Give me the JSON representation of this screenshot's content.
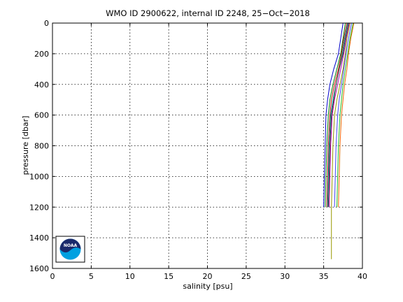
{
  "chart_data": {
    "type": "line",
    "title": "WMO ID 2900622, internal ID 2248, 25−Oct−2018",
    "xlabel": "salinity [psu]",
    "ylabel": "pressure [dbar]",
    "xlim": [
      0,
      40
    ],
    "ylim": [
      0,
      1600
    ],
    "y_reversed": true,
    "grid": true,
    "xticks": [
      0,
      5,
      10,
      15,
      20,
      25,
      30,
      35,
      40
    ],
    "yticks": [
      0,
      200,
      400,
      600,
      800,
      1000,
      1200,
      1400,
      1600
    ],
    "logo_text": "NOAA",
    "series": [
      {
        "color": "#0000cc",
        "points": [
          [
            37.5,
            0
          ],
          [
            37.2,
            100
          ],
          [
            36.9,
            200
          ],
          [
            36.3,
            300
          ],
          [
            35.8,
            400
          ],
          [
            35.5,
            500
          ],
          [
            35.3,
            600
          ],
          [
            35.2,
            800
          ],
          [
            35.1,
            1000
          ],
          [
            35.0,
            1200
          ]
        ]
      },
      {
        "color": "#008000",
        "points": [
          [
            37.8,
            0
          ],
          [
            37.5,
            100
          ],
          [
            37.2,
            200
          ],
          [
            36.7,
            300
          ],
          [
            36.2,
            400
          ],
          [
            35.8,
            500
          ],
          [
            35.6,
            600
          ],
          [
            35.4,
            800
          ],
          [
            35.3,
            1000
          ],
          [
            35.2,
            1200
          ]
        ]
      },
      {
        "color": "#cc0000",
        "points": [
          [
            38.0,
            0
          ],
          [
            37.6,
            100
          ],
          [
            37.3,
            200
          ],
          [
            36.9,
            300
          ],
          [
            36.4,
            400
          ],
          [
            36.0,
            500
          ],
          [
            35.8,
            600
          ],
          [
            35.6,
            800
          ],
          [
            35.5,
            1000
          ],
          [
            35.4,
            1200
          ]
        ]
      },
      {
        "color": "#00aaaa",
        "points": [
          [
            38.1,
            0
          ],
          [
            37.7,
            100
          ],
          [
            37.4,
            200
          ],
          [
            37.0,
            300
          ],
          [
            36.6,
            400
          ],
          [
            36.2,
            500
          ],
          [
            35.9,
            600
          ],
          [
            35.7,
            800
          ],
          [
            35.6,
            1000
          ],
          [
            35.5,
            1200
          ]
        ]
      },
      {
        "color": "#aa00aa",
        "points": [
          [
            38.3,
            0
          ],
          [
            37.9,
            100
          ],
          [
            37.6,
            200
          ],
          [
            37.2,
            300
          ],
          [
            36.8,
            400
          ],
          [
            36.4,
            500
          ],
          [
            36.1,
            600
          ],
          [
            35.9,
            800
          ],
          [
            35.8,
            1000
          ],
          [
            35.7,
            1200
          ]
        ]
      },
      {
        "color": "#999900",
        "points": [
          [
            38.4,
            0
          ],
          [
            38.0,
            100
          ],
          [
            37.8,
            200
          ],
          [
            37.5,
            300
          ],
          [
            37.1,
            400
          ],
          [
            36.7,
            500
          ],
          [
            36.4,
            600
          ],
          [
            36.2,
            800
          ],
          [
            36.1,
            1000
          ],
          [
            36.0,
            1200
          ],
          [
            36.0,
            1400
          ],
          [
            36.0,
            1540
          ]
        ]
      },
      {
        "color": "#333333",
        "points": [
          [
            38.2,
            0
          ],
          [
            37.8,
            100
          ],
          [
            37.5,
            200
          ],
          [
            37.0,
            300
          ],
          [
            36.6,
            400
          ],
          [
            36.3,
            500
          ],
          [
            36.0,
            600
          ],
          [
            35.8,
            800
          ],
          [
            35.7,
            1000
          ],
          [
            35.6,
            1200
          ]
        ]
      },
      {
        "color": "#4444ff",
        "points": [
          [
            38.6,
            0
          ],
          [
            38.2,
            100
          ],
          [
            37.9,
            200
          ],
          [
            37.6,
            300
          ],
          [
            37.3,
            400
          ],
          [
            37.0,
            500
          ],
          [
            36.8,
            600
          ],
          [
            36.6,
            800
          ],
          [
            36.5,
            1000
          ],
          [
            36.4,
            1200
          ]
        ]
      },
      {
        "color": "#22bb22",
        "points": [
          [
            38.8,
            0
          ],
          [
            38.4,
            100
          ],
          [
            38.1,
            200
          ],
          [
            37.8,
            300
          ],
          [
            37.5,
            400
          ],
          [
            37.3,
            500
          ],
          [
            37.1,
            600
          ],
          [
            36.9,
            800
          ],
          [
            36.8,
            1000
          ],
          [
            36.7,
            1200
          ]
        ]
      },
      {
        "color": "#ee6600",
        "points": [
          [
            38.9,
            0
          ],
          [
            38.5,
            100
          ],
          [
            38.2,
            200
          ],
          [
            38.0,
            300
          ],
          [
            37.7,
            400
          ],
          [
            37.5,
            500
          ],
          [
            37.3,
            600
          ],
          [
            37.1,
            800
          ],
          [
            37.0,
            1000
          ],
          [
            36.9,
            1200
          ]
        ]
      }
    ]
  }
}
